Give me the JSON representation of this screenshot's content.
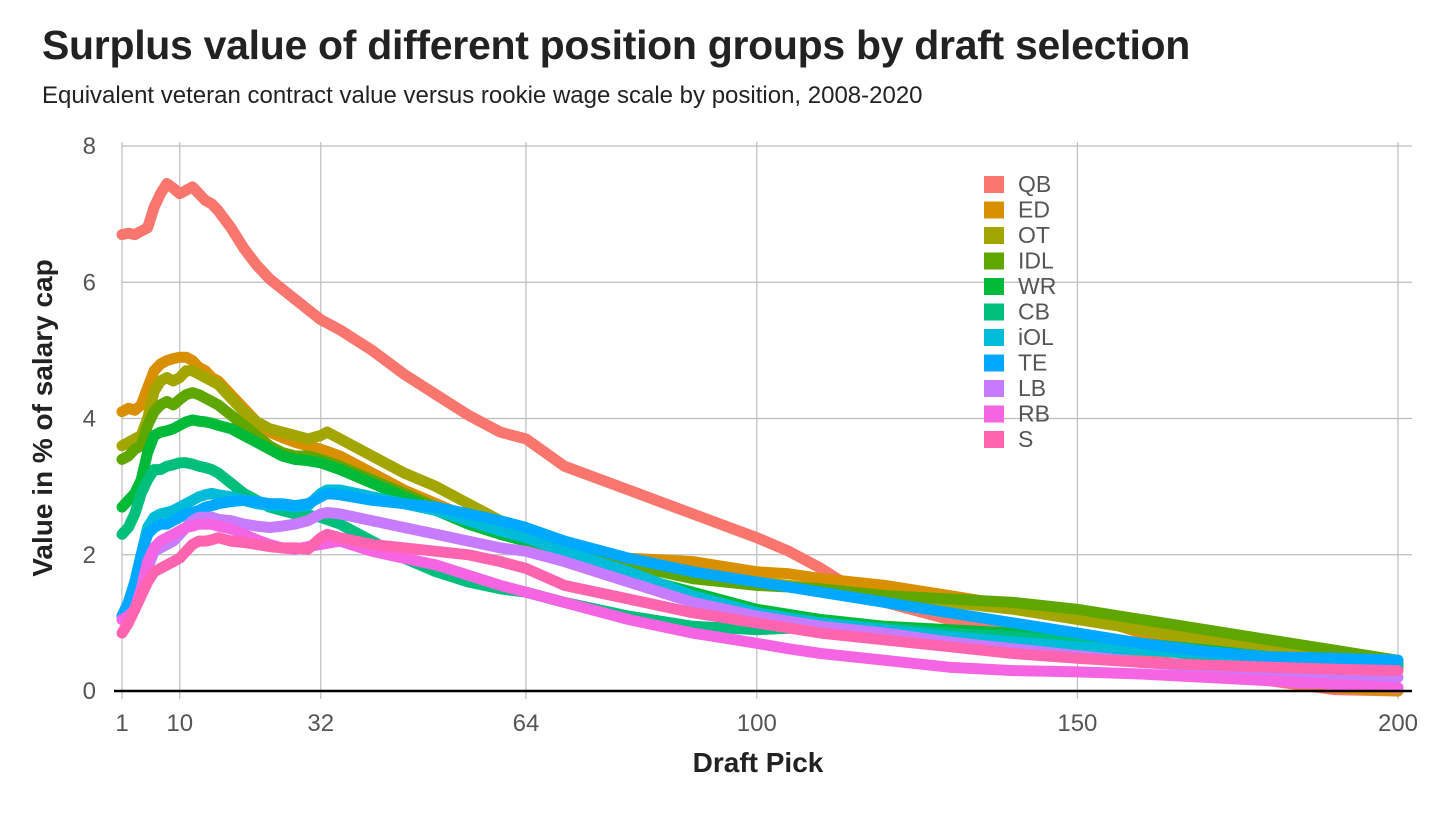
{
  "title": "Surplus value of different position groups by draft selection",
  "subtitle": "Equivalent veteran contract value versus rookie wage scale by position, 2008-2020",
  "chart_data": {
    "type": "line",
    "title": "Surplus value of different position groups by draft selection",
    "subtitle": "Equivalent veteran contract value versus rookie wage scale by position, 2008-2020",
    "xlabel": "Draft Pick",
    "ylabel": "Value in % of salary cap",
    "xlim": [
      1,
      200
    ],
    "ylim": [
      0,
      8
    ],
    "xticks": [
      1,
      10,
      32,
      64,
      100,
      150,
      200
    ],
    "yticks": [
      0,
      2,
      4,
      6,
      8
    ],
    "grid": true,
    "legend_position": "top-right",
    "series": [
      {
        "name": "QB",
        "color": "#F8766D",
        "x": [
          1,
          2,
          3,
          4,
          5,
          6,
          7,
          8,
          9,
          10,
          11,
          12,
          13,
          14,
          15,
          16,
          18,
          20,
          22,
          24,
          26,
          28,
          30,
          32,
          35,
          40,
          45,
          50,
          55,
          60,
          64,
          70,
          80,
          90,
          100,
          105,
          110,
          115,
          120,
          130,
          140,
          150,
          160,
          170,
          180,
          190,
          200
        ],
        "y": [
          6.7,
          6.72,
          6.7,
          6.75,
          6.8,
          7.1,
          7.3,
          7.45,
          7.38,
          7.3,
          7.35,
          7.4,
          7.3,
          7.2,
          7.15,
          7.05,
          6.8,
          6.5,
          6.25,
          6.05,
          5.9,
          5.75,
          5.6,
          5.45,
          5.3,
          5.0,
          4.65,
          4.35,
          4.05,
          3.8,
          3.7,
          3.3,
          2.95,
          2.6,
          2.25,
          2.05,
          1.8,
          1.5,
          1.3,
          1.05,
          0.85,
          0.65,
          0.5,
          0.3,
          0.15,
          0.02,
          0.0
        ]
      },
      {
        "name": "ED",
        "color": "#D89000",
        "x": [
          1,
          2,
          3,
          4,
          5,
          6,
          7,
          8,
          9,
          10,
          11,
          12,
          13,
          14,
          15,
          16,
          18,
          20,
          22,
          24,
          26,
          28,
          30,
          32,
          35,
          40,
          45,
          50,
          55,
          60,
          64,
          70,
          80,
          90,
          100,
          105,
          110,
          120,
          130,
          140,
          150,
          160,
          170,
          180,
          190,
          200
        ],
        "y": [
          4.1,
          4.15,
          4.12,
          4.2,
          4.45,
          4.7,
          4.8,
          4.85,
          4.88,
          4.9,
          4.9,
          4.85,
          4.75,
          4.7,
          4.6,
          4.55,
          4.35,
          4.15,
          3.95,
          3.8,
          3.72,
          3.65,
          3.6,
          3.55,
          3.45,
          3.2,
          2.95,
          2.75,
          2.55,
          2.35,
          2.2,
          2.05,
          1.95,
          1.9,
          1.75,
          1.72,
          1.65,
          1.55,
          1.4,
          1.25,
          1.15,
          0.85,
          0.55,
          0.25,
          0.05,
          0.0
        ]
      },
      {
        "name": "OT",
        "color": "#A3A500",
        "x": [
          1,
          2,
          3,
          4,
          5,
          6,
          7,
          8,
          9,
          10,
          11,
          12,
          13,
          14,
          15,
          16,
          18,
          20,
          22,
          24,
          26,
          28,
          30,
          32,
          33,
          35,
          40,
          45,
          50,
          55,
          60,
          64,
          70,
          80,
          90,
          100,
          110,
          120,
          130,
          140,
          150,
          160,
          170,
          180,
          190,
          200
        ],
        "y": [
          3.6,
          3.65,
          3.7,
          3.75,
          4.0,
          4.4,
          4.55,
          4.6,
          4.55,
          4.6,
          4.7,
          4.7,
          4.65,
          4.6,
          4.55,
          4.5,
          4.3,
          4.1,
          3.95,
          3.85,
          3.8,
          3.75,
          3.7,
          3.75,
          3.8,
          3.7,
          3.45,
          3.2,
          3.0,
          2.75,
          2.5,
          2.3,
          2.1,
          1.85,
          1.7,
          1.6,
          1.5,
          1.4,
          1.3,
          1.2,
          1.05,
          0.9,
          0.75,
          0.6,
          0.45,
          0.35
        ]
      },
      {
        "name": "IDL",
        "color": "#5FA600",
        "x": [
          1,
          2,
          3,
          4,
          5,
          6,
          7,
          8,
          9,
          10,
          11,
          12,
          13,
          14,
          15,
          16,
          18,
          20,
          22,
          24,
          26,
          28,
          30,
          32,
          35,
          40,
          45,
          50,
          55,
          60,
          64,
          70,
          80,
          90,
          100,
          110,
          120,
          130,
          140,
          150,
          160,
          170,
          180,
          190,
          200
        ],
        "y": [
          3.4,
          3.45,
          3.55,
          3.6,
          3.9,
          4.1,
          4.2,
          4.25,
          4.2,
          4.28,
          4.35,
          4.38,
          4.35,
          4.3,
          4.25,
          4.2,
          4.05,
          3.9,
          3.75,
          3.6,
          3.5,
          3.45,
          3.45,
          3.4,
          3.3,
          3.1,
          2.9,
          2.7,
          2.5,
          2.3,
          2.2,
          2.05,
          1.85,
          1.65,
          1.55,
          1.5,
          1.4,
          1.35,
          1.3,
          1.2,
          1.05,
          0.9,
          0.75,
          0.6,
          0.45
        ]
      },
      {
        "name": "WR",
        "color": "#00BA38",
        "x": [
          1,
          2,
          3,
          4,
          5,
          6,
          7,
          8,
          9,
          10,
          11,
          12,
          13,
          14,
          15,
          16,
          18,
          20,
          22,
          24,
          26,
          28,
          30,
          32,
          35,
          40,
          45,
          50,
          55,
          60,
          64,
          70,
          80,
          90,
          100,
          110,
          120,
          130,
          140,
          150,
          160,
          170,
          180,
          190,
          200
        ],
        "y": [
          2.7,
          2.8,
          2.9,
          3.1,
          3.5,
          3.75,
          3.8,
          3.82,
          3.85,
          3.9,
          3.95,
          3.98,
          3.96,
          3.95,
          3.93,
          3.9,
          3.85,
          3.75,
          3.65,
          3.55,
          3.45,
          3.4,
          3.38,
          3.35,
          3.25,
          3.05,
          2.85,
          2.65,
          2.45,
          2.3,
          2.2,
          2.0,
          1.7,
          1.45,
          1.2,
          1.05,
          0.95,
          0.9,
          0.85,
          0.8,
          0.7,
          0.6,
          0.5,
          0.45,
          0.4
        ]
      },
      {
        "name": "CB",
        "color": "#00BF7D",
        "x": [
          1,
          2,
          3,
          4,
          5,
          6,
          7,
          8,
          9,
          10,
          11,
          12,
          13,
          14,
          15,
          16,
          18,
          20,
          22,
          24,
          26,
          28,
          30,
          32,
          35,
          40,
          45,
          50,
          55,
          60,
          64,
          70,
          80,
          90,
          100,
          105,
          110,
          120,
          130,
          140,
          150,
          160,
          170,
          180,
          190,
          200
        ],
        "y": [
          2.3,
          2.4,
          2.6,
          2.9,
          3.1,
          3.25,
          3.25,
          3.3,
          3.32,
          3.35,
          3.35,
          3.33,
          3.3,
          3.28,
          3.25,
          3.2,
          3.05,
          2.9,
          2.8,
          2.7,
          2.65,
          2.6,
          2.58,
          2.55,
          2.45,
          2.2,
          1.95,
          1.75,
          1.6,
          1.5,
          1.45,
          1.3,
          1.1,
          0.95,
          0.9,
          0.92,
          1.0,
          0.92,
          0.85,
          0.8,
          0.72,
          0.62,
          0.52,
          0.45,
          0.4,
          0.35
        ]
      },
      {
        "name": "iOL",
        "color": "#00BCD8",
        "x": [
          1,
          2,
          3,
          4,
          5,
          6,
          7,
          8,
          9,
          10,
          11,
          12,
          13,
          14,
          15,
          16,
          18,
          20,
          22,
          24,
          26,
          28,
          30,
          32,
          33,
          35,
          40,
          45,
          50,
          55,
          60,
          64,
          70,
          80,
          90,
          100,
          110,
          120,
          130,
          140,
          150,
          160,
          170,
          180,
          190,
          200
        ],
        "y": [
          1.1,
          1.3,
          1.6,
          2.0,
          2.4,
          2.55,
          2.6,
          2.62,
          2.65,
          2.7,
          2.75,
          2.8,
          2.85,
          2.88,
          2.9,
          2.88,
          2.85,
          2.8,
          2.75,
          2.72,
          2.72,
          2.7,
          2.72,
          2.9,
          2.95,
          2.95,
          2.85,
          2.75,
          2.65,
          2.5,
          2.35,
          2.25,
          2.05,
          1.75,
          1.4,
          1.15,
          1.0,
          0.9,
          0.8,
          0.72,
          0.65,
          0.6,
          0.55,
          0.5,
          0.48,
          0.45
        ]
      },
      {
        "name": "TE",
        "color": "#00A9FF",
        "x": [
          1,
          2,
          3,
          4,
          5,
          6,
          7,
          8,
          9,
          10,
          11,
          12,
          13,
          14,
          15,
          16,
          18,
          20,
          22,
          24,
          26,
          28,
          30,
          32,
          33,
          35,
          40,
          45,
          50,
          55,
          60,
          64,
          70,
          80,
          90,
          100,
          110,
          120,
          130,
          140,
          150,
          160,
          170,
          180,
          190,
          200
        ],
        "y": [
          1.1,
          1.3,
          1.6,
          2.0,
          2.3,
          2.4,
          2.45,
          2.45,
          2.5,
          2.55,
          2.6,
          2.62,
          2.65,
          2.7,
          2.72,
          2.75,
          2.78,
          2.8,
          2.78,
          2.75,
          2.75,
          2.72,
          2.75,
          2.85,
          2.9,
          2.88,
          2.8,
          2.75,
          2.7,
          2.6,
          2.5,
          2.4,
          2.2,
          1.95,
          1.75,
          1.6,
          1.45,
          1.3,
          1.15,
          1.0,
          0.85,
          0.7,
          0.58,
          0.5,
          0.48,
          0.45
        ]
      },
      {
        "name": "LB",
        "color": "#C77CFF",
        "x": [
          1,
          2,
          3,
          4,
          5,
          6,
          7,
          8,
          9,
          10,
          11,
          12,
          13,
          14,
          15,
          16,
          18,
          20,
          22,
          24,
          26,
          28,
          30,
          32,
          33,
          35,
          40,
          45,
          50,
          55,
          60,
          64,
          70,
          80,
          90,
          100,
          110,
          120,
          130,
          140,
          150,
          160,
          170,
          180,
          190,
          200
        ],
        "y": [
          1.05,
          1.1,
          1.2,
          1.4,
          1.8,
          2.05,
          2.1,
          2.15,
          2.2,
          2.3,
          2.4,
          2.5,
          2.55,
          2.55,
          2.55,
          2.52,
          2.5,
          2.45,
          2.42,
          2.4,
          2.42,
          2.45,
          2.5,
          2.6,
          2.62,
          2.6,
          2.5,
          2.4,
          2.3,
          2.2,
          2.1,
          2.05,
          1.9,
          1.6,
          1.3,
          1.1,
          0.95,
          0.85,
          0.72,
          0.62,
          0.52,
          0.42,
          0.35,
          0.28,
          0.22,
          0.2
        ]
      },
      {
        "name": "RB",
        "color": "#F564E3",
        "x": [
          1,
          2,
          3,
          4,
          5,
          6,
          7,
          8,
          9,
          10,
          11,
          12,
          13,
          14,
          15,
          16,
          18,
          20,
          22,
          24,
          26,
          28,
          30,
          32,
          35,
          40,
          45,
          50,
          55,
          60,
          64,
          70,
          80,
          90,
          100,
          105,
          110,
          120,
          130,
          140,
          150,
          160,
          170,
          180,
          190,
          200
        ],
        "y": [
          1.05,
          1.1,
          1.2,
          1.5,
          1.9,
          2.1,
          2.2,
          2.25,
          2.3,
          2.35,
          2.4,
          2.42,
          2.45,
          2.45,
          2.45,
          2.42,
          2.38,
          2.3,
          2.22,
          2.15,
          2.1,
          2.08,
          2.12,
          2.15,
          2.2,
          2.05,
          1.95,
          1.85,
          1.7,
          1.55,
          1.45,
          1.3,
          1.05,
          0.85,
          0.7,
          0.62,
          0.55,
          0.45,
          0.35,
          0.3,
          0.28,
          0.25,
          0.2,
          0.15,
          0.1,
          0.05
        ]
      },
      {
        "name": "S",
        "color": "#FF64B0",
        "x": [
          1,
          2,
          3,
          4,
          5,
          6,
          7,
          8,
          9,
          10,
          11,
          12,
          13,
          14,
          15,
          16,
          18,
          20,
          22,
          24,
          26,
          28,
          30,
          32,
          33,
          35,
          40,
          45,
          50,
          55,
          60,
          64,
          70,
          80,
          90,
          100,
          110,
          120,
          130,
          140,
          150,
          160,
          170,
          180,
          190,
          200
        ],
        "y": [
          0.85,
          1.0,
          1.2,
          1.4,
          1.6,
          1.75,
          1.8,
          1.85,
          1.9,
          1.95,
          2.05,
          2.15,
          2.2,
          2.2,
          2.22,
          2.25,
          2.2,
          2.18,
          2.15,
          2.12,
          2.1,
          2.1,
          2.08,
          2.25,
          2.3,
          2.25,
          2.15,
          2.1,
          2.05,
          2.0,
          1.9,
          1.8,
          1.55,
          1.35,
          1.15,
          1.0,
          0.85,
          0.75,
          0.65,
          0.55,
          0.48,
          0.42,
          0.38,
          0.35,
          0.32,
          0.3
        ]
      }
    ]
  }
}
